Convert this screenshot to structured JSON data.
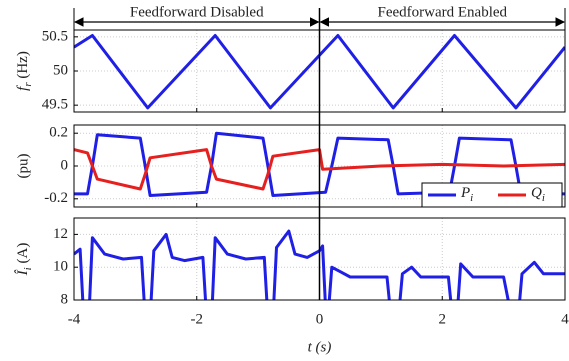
{
  "chart_data": [
    {
      "type": "line",
      "ylabel": "f_r (Hz)",
      "xlim": [
        -4,
        4
      ],
      "ylim": [
        49.4,
        50.6
      ],
      "yticks": [
        49.5,
        50,
        50.5
      ],
      "grid": true,
      "annotations": [
        {
          "text": "Feedforward Disabled",
          "x": [
            -4,
            0
          ]
        },
        {
          "text": "Feedforward Enabled",
          "x": [
            0,
            4
          ]
        }
      ],
      "series": [
        {
          "name": "f_r",
          "color": "#1f1fe6",
          "x": [
            -4,
            -3.7,
            -2.8,
            -1.7,
            -0.8,
            0.3,
            1.2,
            2.2,
            3.2,
            4
          ],
          "values": [
            50.35,
            50.52,
            49.46,
            50.52,
            49.46,
            50.52,
            49.46,
            50.52,
            49.46,
            50.35
          ]
        }
      ]
    },
    {
      "type": "line",
      "ylabel": "(pu)",
      "xlim": [
        -4,
        4
      ],
      "ylim": [
        -0.25,
        0.25
      ],
      "yticks": [
        -0.2,
        0,
        0.2
      ],
      "grid": true,
      "legend": "lower right",
      "series": [
        {
          "name": "P_i",
          "color": "#1f1fe6",
          "x": [
            -4,
            -3.78,
            -3.7,
            -3.62,
            -2.92,
            -2.84,
            -2.76,
            -1.84,
            -1.76,
            -1.68,
            -0.92,
            -0.84,
            -0.76,
            0.1,
            0.2,
            0.3,
            1.12,
            1.2,
            1.28,
            2.12,
            2.2,
            2.28,
            3.12,
            3.2,
            3.28,
            4
          ],
          "values": [
            -0.17,
            -0.17,
            0.0,
            0.19,
            0.17,
            0.0,
            -0.18,
            -0.16,
            0.0,
            0.2,
            0.17,
            0.0,
            -0.18,
            -0.16,
            0.0,
            0.17,
            0.16,
            0.0,
            -0.17,
            -0.16,
            0.0,
            0.17,
            0.16,
            0.0,
            -0.17,
            -0.17
          ]
        },
        {
          "name": "Q_i",
          "color": "#e61f1f",
          "x": [
            -4,
            -3.78,
            -3.7,
            -3.62,
            -2.92,
            -2.84,
            -2.76,
            -1.84,
            -1.76,
            -1.68,
            -0.92,
            -0.84,
            -0.76,
            0,
            0.05,
            1,
            2,
            3,
            4
          ],
          "values": [
            0.1,
            0.08,
            0.0,
            -0.08,
            -0.14,
            -0.05,
            0.05,
            0.1,
            0.0,
            -0.08,
            -0.14,
            -0.05,
            0.06,
            0.1,
            -0.02,
            0.0,
            0.01,
            0.0,
            0.01
          ]
        }
      ]
    },
    {
      "type": "line",
      "ylabel": "Î_i (A)",
      "xlabel": "t (s)",
      "xlim": [
        -4,
        4
      ],
      "ylim": [
        8,
        13
      ],
      "yticks": [
        8,
        10,
        12
      ],
      "xticks": [
        -4,
        -2,
        0,
        2,
        4
      ],
      "grid": true,
      "series": [
        {
          "name": "Î_i",
          "color": "#1f1fe6",
          "x": [
            -4,
            -3.9,
            -3.85,
            -3.75,
            -3.7,
            -3.5,
            -3.2,
            -2.9,
            -2.85,
            -2.75,
            -2.7,
            -2.5,
            -2.4,
            -2.2,
            -1.9,
            -1.85,
            -1.75,
            -1.7,
            -1.5,
            -1.2,
            -0.9,
            -0.85,
            -0.75,
            -0.7,
            -0.5,
            -0.4,
            -0.2,
            0,
            0.05,
            0.1,
            0.15,
            0.2,
            0.35,
            0.5,
            1.1,
            1.15,
            1.3,
            1.35,
            1.5,
            1.65,
            2.1,
            2.15,
            2.25,
            2.3,
            2.5,
            3.0,
            3.1,
            3.25,
            3.3,
            3.5,
            3.65,
            4
          ],
          "values": [
            10.8,
            11.1,
            7.5,
            7.5,
            11.8,
            10.8,
            10.5,
            10.6,
            7.5,
            7.5,
            11.0,
            12.0,
            10.6,
            10.4,
            10.6,
            7.5,
            7.5,
            11.8,
            10.8,
            10.5,
            10.6,
            7.5,
            7.5,
            11.2,
            12.2,
            10.8,
            10.6,
            11.0,
            11.3,
            7.5,
            7.5,
            10.0,
            9.7,
            9.4,
            9.4,
            7.5,
            7.5,
            9.6,
            10.0,
            9.4,
            9.4,
            7.5,
            7.5,
            10.2,
            9.4,
            9.4,
            7.5,
            7.5,
            9.6,
            10.3,
            9.6,
            9.6
          ]
        }
      ]
    }
  ]
}
